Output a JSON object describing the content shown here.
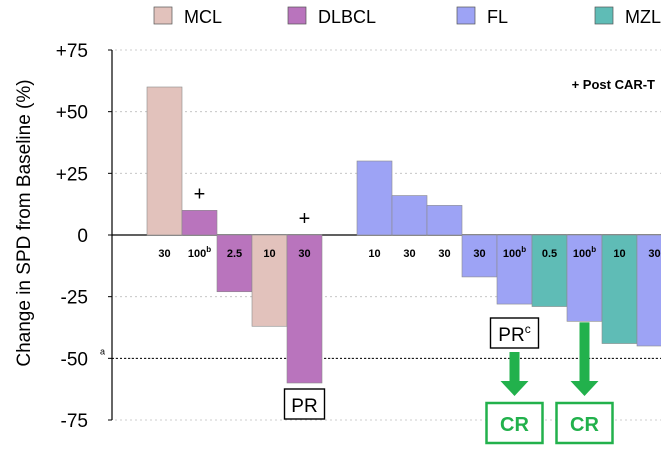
{
  "chart_data": {
    "type": "bar",
    "ylabel": "Change in SPD from Baseline (%)",
    "ylim": [
      -75,
      75
    ],
    "yticks": [
      75,
      50,
      25,
      0,
      -25,
      -50,
      -75
    ],
    "ytick_labels": [
      "+75",
      "+50",
      "+25",
      "0",
      "-25",
      "-50",
      "-75"
    ],
    "legend_position": "top",
    "legend": [
      {
        "name": "MCL",
        "color": "#e2c2bc"
      },
      {
        "name": "DLBCL",
        "color": "#b974bd"
      },
      {
        "name": "FL",
        "color": "#9da3f5"
      },
      {
        "name": "MZL",
        "color": "#5fbcb6"
      }
    ],
    "bars": [
      {
        "category": "MCL",
        "dose": "30",
        "sup": "",
        "value": 60,
        "post_car_t": false
      },
      {
        "category": "DLBCL",
        "dose": "100",
        "sup": "b",
        "value": 10,
        "post_car_t": true
      },
      {
        "category": "DLBCL",
        "dose": "2.5",
        "sup": "",
        "value": -23,
        "post_car_t": false
      },
      {
        "category": "MCL",
        "dose": "10",
        "sup": "",
        "value": -37,
        "post_car_t": false
      },
      {
        "category": "DLBCL",
        "dose": "30",
        "sup": "",
        "value": -60,
        "post_car_t": true
      },
      {
        "category": "FL",
        "dose": "10",
        "sup": "",
        "value": 30,
        "post_car_t": false
      },
      {
        "category": "FL",
        "dose": "30",
        "sup": "",
        "value": 16,
        "post_car_t": false
      },
      {
        "category": "FL",
        "dose": "30",
        "sup": "",
        "value": 12,
        "post_car_t": false
      },
      {
        "category": "FL",
        "dose": "30",
        "sup": "",
        "value": -17,
        "post_car_t": false
      },
      {
        "category": "FL",
        "dose": "100",
        "sup": "b",
        "value": -28,
        "post_car_t": false
      },
      {
        "category": "MZL",
        "dose": "0.5",
        "sup": "",
        "value": -29,
        "post_car_t": false
      },
      {
        "category": "FL",
        "dose": "100",
        "sup": "b",
        "value": -35,
        "post_car_t": false
      },
      {
        "category": "MZL",
        "dose": "10",
        "sup": "",
        "value": -44,
        "post_car_t": false
      },
      {
        "category": "FL",
        "dose": "30",
        "sup": "",
        "value": -45,
        "post_car_t": false
      }
    ],
    "reference_line": {
      "value": -50,
      "label": "a"
    },
    "plus_symbol": "+",
    "post_car_t_label": "+ Post CAR-T",
    "annotations": [
      {
        "text": "PR",
        "sup": "",
        "bar_index": 4,
        "kind": "box"
      },
      {
        "text": "PR",
        "sup": "c",
        "bar_index": 9,
        "kind": "box"
      },
      {
        "text": "CR",
        "sup": "",
        "bar_index": 9,
        "kind": "arrow-box"
      },
      {
        "text": "CR",
        "sup": "",
        "bar_index": 11,
        "kind": "arrow-box"
      }
    ],
    "colors": {
      "arrow": "#22b14c",
      "axis": "#000000",
      "grid": "#bdbdbd"
    }
  }
}
